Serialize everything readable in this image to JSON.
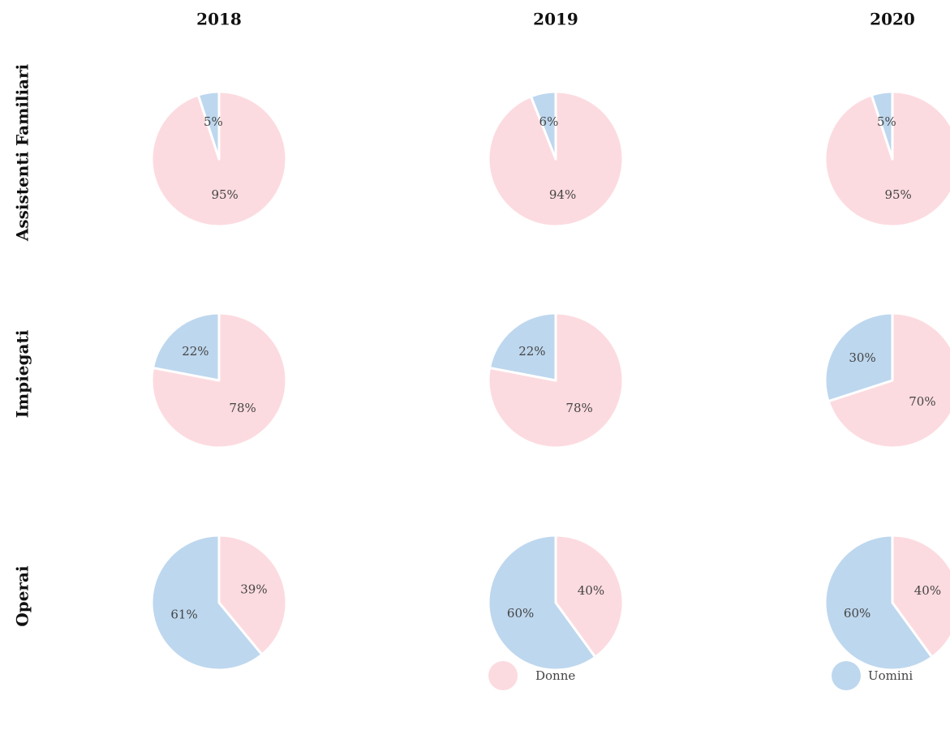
{
  "columns": [
    "2018",
    "2019",
    "2020"
  ],
  "rows": [
    "Assistenti Familiari",
    "Impiegati",
    "Operai"
  ],
  "chart_data": [
    {
      "type": "pie",
      "categories": [
        "Donne",
        "Uomini"
      ],
      "values": [
        95,
        5
      ],
      "value_labels": [
        "95%",
        "5%"
      ],
      "colors": [
        "#fcdbe0",
        "#bdd7ee"
      ]
    },
    {
      "type": "pie",
      "categories": [
        "Donne",
        "Uomini"
      ],
      "values": [
        94,
        6
      ],
      "value_labels": [
        "94%",
        "6%"
      ],
      "colors": [
        "#fcdbe0",
        "#bdd7ee"
      ]
    },
    {
      "type": "pie",
      "categories": [
        "Donne",
        "Uomini"
      ],
      "values": [
        95,
        5
      ],
      "value_labels": [
        "95%",
        "5%"
      ],
      "colors": [
        "#fcdbe0",
        "#bdd7ee"
      ]
    },
    {
      "type": "pie",
      "categories": [
        "Donne",
        "Uomini"
      ],
      "values": [
        78,
        22
      ],
      "value_labels": [
        "78%",
        "22%"
      ],
      "colors": [
        "#fcdbe0",
        "#bdd7ee"
      ]
    },
    {
      "type": "pie",
      "categories": [
        "Donne",
        "Uomini"
      ],
      "values": [
        78,
        22
      ],
      "value_labels": [
        "78%",
        "22%"
      ],
      "colors": [
        "#fcdbe0",
        "#bdd7ee"
      ]
    },
    {
      "type": "pie",
      "categories": [
        "Donne",
        "Uomini"
      ],
      "values": [
        70,
        30
      ],
      "value_labels": [
        "70%",
        "30%"
      ],
      "colors": [
        "#fcdbe0",
        "#bdd7ee"
      ]
    },
    {
      "type": "pie",
      "categories": [
        "Donne",
        "Uomini"
      ],
      "values": [
        39,
        61
      ],
      "value_labels": [
        "39%",
        "61%"
      ],
      "colors": [
        "#fcdbe0",
        "#bdd7ee"
      ]
    },
    {
      "type": "pie",
      "categories": [
        "Donne",
        "Uomini"
      ],
      "values": [
        40,
        60
      ],
      "value_labels": [
        "40%",
        "60%"
      ],
      "colors": [
        "#fcdbe0",
        "#bdd7ee"
      ]
    },
    {
      "type": "pie",
      "categories": [
        "Donne",
        "Uomini"
      ],
      "values": [
        40,
        60
      ],
      "value_labels": [
        "40%",
        "60%"
      ],
      "colors": [
        "#fcdbe0",
        "#bdd7ee"
      ]
    }
  ]
}
